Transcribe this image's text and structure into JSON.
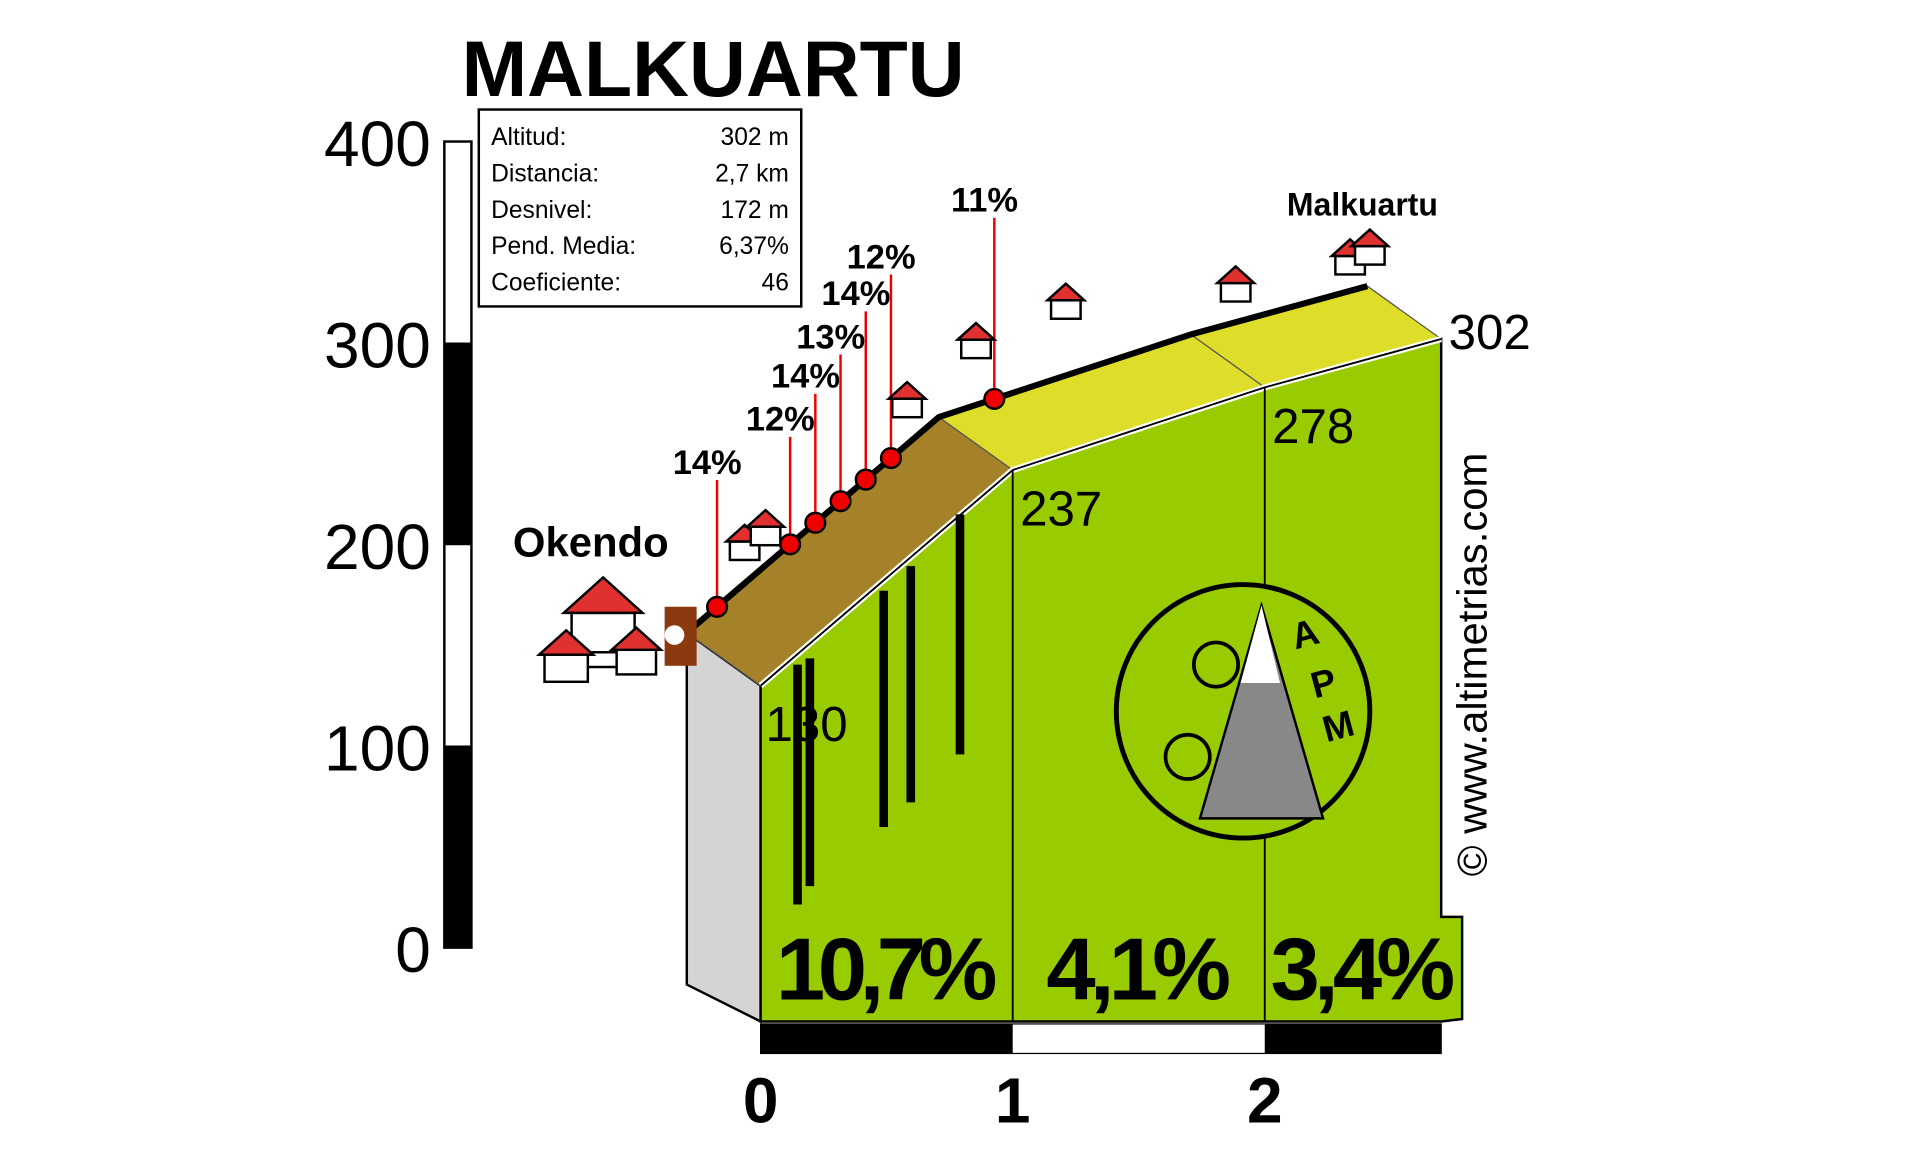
{
  "chart_data": {
    "type": "profile",
    "title": "MALKUARTU",
    "info": {
      "labels": [
        "Altitud:",
        "Distancia:",
        "Desnivel:",
        "Pend. Media:",
        "Coeficiente:"
      ],
      "values": [
        "302 m",
        "2,7 km",
        "172 m",
        "6,37%",
        "46"
      ]
    },
    "start_label": "Okendo",
    "end_label": "Malkuartu",
    "x": [
      0,
      1,
      2,
      2.7
    ],
    "values": [
      130,
      237,
      278,
      302
    ],
    "xlim": [
      0,
      2.7
    ],
    "xticks": [
      0,
      1,
      2
    ],
    "ylim": [
      0,
      400
    ],
    "yticks": [
      0,
      100,
      200,
      300,
      400
    ],
    "segments": {
      "values": [
        10.7,
        4.1,
        3.4
      ],
      "value_labels": [
        "10,7%",
        "4,1%",
        "3,4%"
      ]
    },
    "gradients": {
      "x": [
        0.12,
        0.41,
        0.51,
        0.61,
        0.71,
        0.81,
        1.22
      ],
      "values": [
        14,
        12,
        14,
        13,
        14,
        12,
        11
      ],
      "value_labels": [
        "14%",
        "12%",
        "14%",
        "13%",
        "14%",
        "12%",
        "11%"
      ]
    },
    "logo_letters": [
      "A",
      "P",
      "M"
    ],
    "watermark": "© www.altimetrias.com",
    "color": "#99cc00"
  }
}
